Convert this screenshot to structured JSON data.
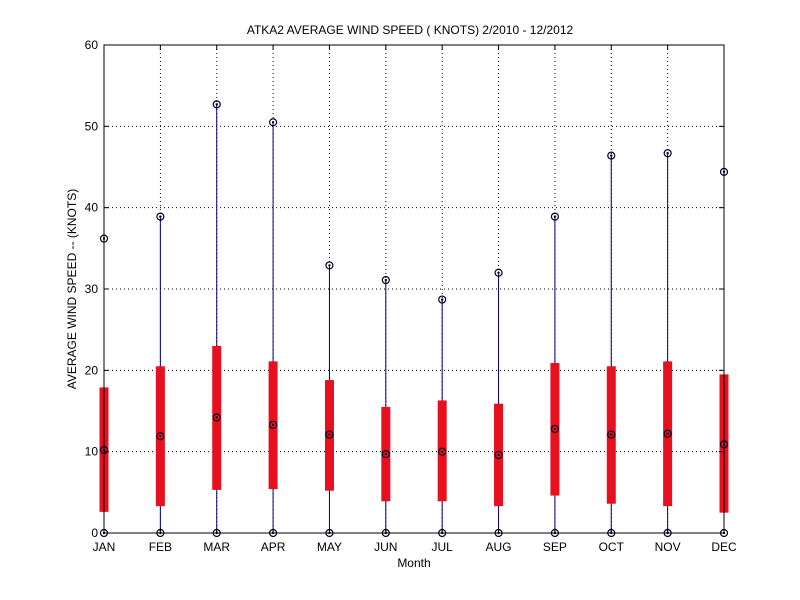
{
  "chart_data": {
    "type": "box",
    "title": "ATKA2  AVERAGE WIND SPEED ( KNOTS) 2/2010 - 12/2012",
    "xlabel": "Month",
    "ylabel": "AVERAGE WIND SPEED -- (KNOTS)",
    "ylim": [
      0,
      60
    ],
    "yticks": [
      0,
      10,
      20,
      30,
      40,
      50,
      60
    ],
    "grid": true,
    "categories": [
      "JAN",
      "FEB",
      "MAR",
      "APR",
      "MAY",
      "JUN",
      "JUL",
      "AUG",
      "SEP",
      "OCT",
      "NOV",
      "DEC"
    ],
    "series": [
      {
        "min": [
          0,
          0,
          0,
          0,
          0,
          0,
          0,
          0,
          0,
          0,
          0,
          0
        ],
        "q1": [
          2.6,
          3.3,
          5.3,
          5.4,
          5.2,
          3.9,
          3.9,
          3.3,
          4.6,
          3.6,
          3.3,
          2.5
        ],
        "median": [
          10.2,
          11.9,
          14.2,
          13.3,
          12.1,
          9.7,
          10.0,
          9.6,
          12.8,
          12.1,
          12.2,
          10.9
        ],
        "q3": [
          17.9,
          20.5,
          23.0,
          21.1,
          18.8,
          15.5,
          16.3,
          15.9,
          20.9,
          20.5,
          21.1,
          19.5
        ],
        "max": [
          36.2,
          38.9,
          52.7,
          50.5,
          32.9,
          31.1,
          28.7,
          32.0,
          38.9,
          46.4,
          46.7,
          44.4
        ]
      }
    ],
    "colors": {
      "box": "#e8101e",
      "whisker": "#000080",
      "marker": "#000020"
    }
  }
}
